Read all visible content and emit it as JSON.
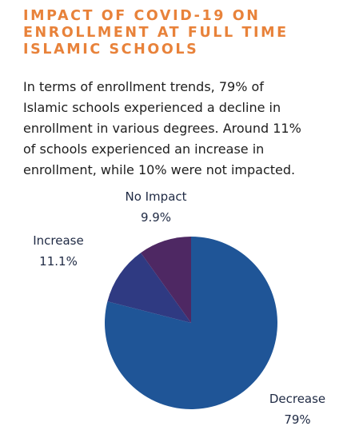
{
  "title_lines": [
    "IMPACT OF COVID-19 ON",
    "ENROLLMENT AT FULL TIME",
    "ISLAMIC SCHOOLS"
  ],
  "body_lines": [
    "In terms of enrollment trends, 79% of",
    "Islamic schools experienced a decline in",
    "enrollment in various degrees. Around 11%",
    "of schools experienced an increase in",
    "enrollment, while 10% were not impacted."
  ],
  "colors": {
    "title": "#E8823A",
    "text": "#1d1d1d",
    "label": "#1f2a44"
  },
  "chart_data": {
    "type": "pie",
    "slices": [
      {
        "name": "Decrease",
        "value": 79,
        "value_label": "79%",
        "color": "#1F5597"
      },
      {
        "name": "Increase",
        "value": 11.1,
        "value_label": "11.1%",
        "color": "#2F3A82"
      },
      {
        "name": "No Impact",
        "value": 9.9,
        "value_label": "9.9%",
        "color": "#4E2863"
      }
    ]
  }
}
